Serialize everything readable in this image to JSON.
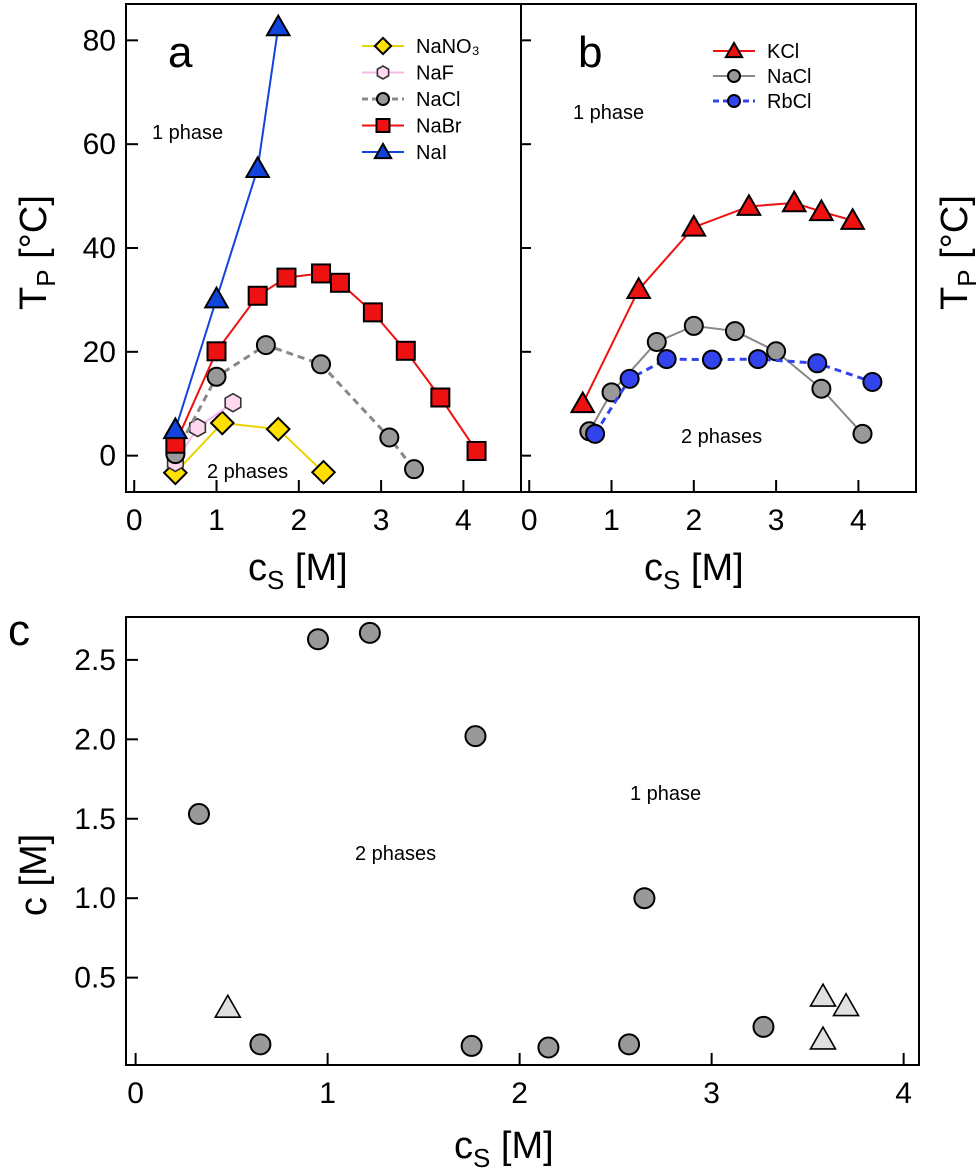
{
  "chart_data": [
    {
      "panel": "a",
      "type": "line",
      "xlabel": "c_S [M]",
      "ylabel": "T_P [°C]",
      "xlim": [
        -0.1,
        4.7
      ],
      "ylim": [
        -7,
        87
      ],
      "xticks": [
        0,
        1,
        2,
        3,
        4
      ],
      "yticks": [
        0,
        20,
        40,
        60,
        80
      ],
      "y_axis_side": "left",
      "legend_position": "top-right",
      "annotations": [
        "1 phase",
        "2 phases"
      ],
      "series": [
        {
          "name": "NaNO₃",
          "marker": "diamond",
          "color": "#ffe000",
          "line_color": "#e9d300",
          "dashed": false,
          "x": [
            0.5,
            1.07,
            1.75,
            2.3
          ],
          "y": [
            -3.3,
            6.3,
            5.1,
            -3.2
          ]
        },
        {
          "name": "NaF",
          "marker": "hexagon",
          "color": "#ffd8f0",
          "line_color": "#f8b8e8",
          "dashed": false,
          "x": [
            0.5,
            0.77,
            1.2
          ],
          "y": [
            -1.3,
            5.4,
            10.2
          ]
        },
        {
          "name": "NaCl",
          "marker": "circle",
          "color": "#999999",
          "line_color": "#888888",
          "dashed": true,
          "x": [
            0.5,
            1.0,
            1.6,
            2.27,
            3.1,
            3.4
          ],
          "y": [
            0.3,
            15.2,
            21.3,
            17.6,
            3.5,
            -2.6
          ]
        },
        {
          "name": "NaBr",
          "marker": "square",
          "color": "#ee1111",
          "line_color": "#ee1111",
          "dashed": false,
          "x": [
            0.5,
            1.0,
            1.5,
            1.85,
            2.27,
            2.5,
            2.9,
            3.3,
            3.72,
            4.16
          ],
          "y": [
            2.3,
            20.1,
            30.8,
            34.3,
            35.1,
            33.3,
            27.6,
            20.2,
            11.2,
            0.9
          ]
        },
        {
          "name": "NaI",
          "marker": "triangle",
          "color": "#1144dd",
          "line_color": "#1144dd",
          "dashed": false,
          "x": [
            0.5,
            1.0,
            1.5,
            1.75
          ],
          "y": [
            5.0,
            30.2,
            55.3,
            82.6
          ]
        }
      ]
    },
    {
      "panel": "b",
      "type": "line",
      "xlabel": "c_S [M]",
      "ylabel": "T_P [°C]",
      "xlim": [
        -0.1,
        4.7
      ],
      "ylim": [
        -7,
        87
      ],
      "xticks": [
        0,
        1,
        2,
        3,
        4
      ],
      "y_axis_side": "right",
      "legend_position": "top-right",
      "annotations": [
        "1 phase",
        "2 phases"
      ],
      "series": [
        {
          "name": "KCl",
          "marker": "triangle",
          "color": "#ee1111",
          "line_color": "#ee1111",
          "dashed": false,
          "x": [
            0.65,
            1.33,
            2.0,
            2.67,
            3.22,
            3.55,
            3.93
          ],
          "y": [
            10.0,
            32.0,
            44.0,
            48.0,
            48.7,
            47.0,
            45.3
          ]
        },
        {
          "name": "NaCl",
          "marker": "circle",
          "color": "#999999",
          "line_color": "#888888",
          "dashed": false,
          "x": [
            0.73,
            1.0,
            1.55,
            2.0,
            2.5,
            3.0,
            3.55,
            4.05
          ],
          "y": [
            4.7,
            12.2,
            21.9,
            25.0,
            24.0,
            20.1,
            12.9,
            4.2
          ]
        },
        {
          "name": "RbCl",
          "marker": "circle",
          "color": "#3344ee",
          "line_color": "#3344ee",
          "dashed": true,
          "x": [
            0.8,
            1.22,
            1.67,
            2.22,
            2.78,
            3.5,
            4.17
          ],
          "y": [
            4.2,
            14.8,
            18.6,
            18.5,
            18.6,
            17.8,
            14.2
          ]
        }
      ]
    },
    {
      "panel": "c",
      "type": "scatter",
      "xlabel": "c_S [M]",
      "ylabel": "c [M]",
      "xlim": [
        -0.05,
        4.08
      ],
      "ylim": [
        -0.05,
        2.77
      ],
      "xticks": [
        0,
        1,
        2,
        3,
        4
      ],
      "yticks": [
        0.5,
        1.0,
        1.5,
        2.0,
        2.5
      ],
      "ytick_labels": [
        "0.5",
        "1.0",
        "1.5",
        "2.0",
        "2.5"
      ],
      "annotations": [
        "1 phase",
        "2 phases"
      ],
      "series": [
        {
          "marker": "circle",
          "color": "#999999",
          "x": [
            0.33,
            0.65,
            0.95,
            1.22,
            1.77,
            1.75,
            2.15,
            2.57,
            2.65,
            3.27
          ],
          "y": [
            1.53,
            0.08,
            2.63,
            2.67,
            2.02,
            0.07,
            0.06,
            0.08,
            1.0,
            0.19
          ]
        },
        {
          "marker": "open-triangle",
          "color": "#e0e0e0",
          "x": [
            0.48,
            3.58,
            3.58,
            3.7
          ],
          "y": [
            0.31,
            0.38,
            0.11,
            0.32
          ]
        }
      ]
    }
  ],
  "text": {
    "panel_a": "a",
    "panel_b": "b",
    "panel_c": "c",
    "one_phase": "1 phase",
    "two_phases": "2 phases",
    "tp_main": "T",
    "tp_sub": "P",
    "tp_unit": " [°C]",
    "cs_main": "c",
    "cs_sub": "S",
    "cs_unit": " [M]",
    "c_label": "c [M]"
  }
}
